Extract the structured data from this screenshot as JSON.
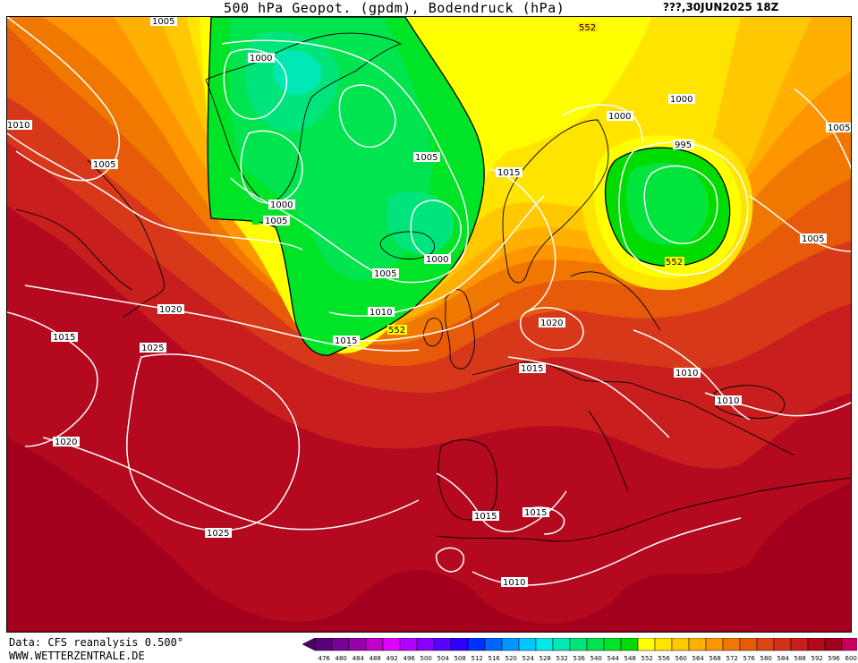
{
  "header": {
    "title": "500 hPa Geopot. (gpdm), Bodendruck (hPa)",
    "datestamp": "???,30JUN2025 18Z"
  },
  "footer": {
    "data_source": "Data: CFS reanalysis 0.500°",
    "website": "WWW.WETTERZENTRALE.DE"
  },
  "colors": {
    "background_ocean_south": "#a2001c",
    "isobar_line": "#ffffff",
    "coastline": "#000000",
    "trough_green": "#00e43c",
    "ridge_red": "#b4001e"
  },
  "map": {
    "region": "North Atlantic and Europe",
    "isobar_labels": [
      "1005",
      "1010",
      "1005",
      "1000",
      "1000",
      "1005",
      "1000",
      "1005",
      "1005",
      "1010",
      "1015",
      "1015",
      "1000",
      "1000",
      "995",
      "1005",
      "1005",
      "1020",
      "1015",
      "1025",
      "1020",
      "1015",
      "1020",
      "1015",
      "1010",
      "1010",
      "1025",
      "1015",
      "1015",
      "1010"
    ],
    "geopotential_labels": [
      "552",
      "552",
      "552",
      "552"
    ]
  },
  "colorbar": {
    "ticks": [
      "476",
      "480",
      "484",
      "488",
      "492",
      "496",
      "500",
      "504",
      "508",
      "512",
      "516",
      "520",
      "524",
      "528",
      "532",
      "536",
      "540",
      "544",
      "548",
      "552",
      "556",
      "560",
      "564",
      "568",
      "572",
      "576",
      "580",
      "584",
      "588",
      "592",
      "596",
      "600"
    ],
    "colors": [
      "#5a0078",
      "#780094",
      "#9a00aa",
      "#c000c8",
      "#e000ff",
      "#b400ff",
      "#8a00ff",
      "#5a00ff",
      "#2c00ff",
      "#0030ff",
      "#0064ff",
      "#0096ff",
      "#00c8ff",
      "#00e8e8",
      "#00e8b4",
      "#00e47c",
      "#00e450",
      "#00e428",
      "#00dc00",
      "#ffff00",
      "#ffe400",
      "#ffc800",
      "#ffb000",
      "#ff9600",
      "#f07800",
      "#e65a0a",
      "#dc4614",
      "#d23214",
      "#c81e1e",
      "#b40a1e",
      "#a0001c",
      "#c8005a"
    ]
  }
}
